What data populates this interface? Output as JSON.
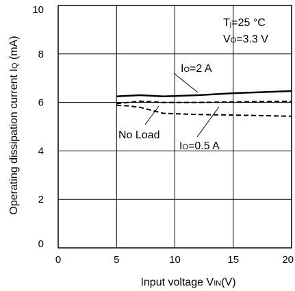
{
  "chart_data": {
    "type": "line",
    "xlabel": {
      "main": "Input voltage V",
      "sub": "IN",
      "tail": "(V)"
    },
    "ylabel": {
      "main": "Operating dissipation current I",
      "sub": "Q",
      "tail": " (mA)"
    },
    "xlim": [
      0,
      20
    ],
    "ylim": [
      0,
      10
    ],
    "xticks": [
      "0",
      "5",
      "10",
      "15",
      "20"
    ],
    "yticks": [
      "0",
      "2",
      "4",
      "6",
      "8",
      "10"
    ],
    "grid": true,
    "conditions": [
      {
        "main": "T",
        "sub": "j",
        "tail": "=25 °C"
      },
      {
        "main": "V",
        "sub": "O",
        "tail": "=3.3 V"
      }
    ],
    "series": [
      {
        "name": {
          "main": "I",
          "sub": "O",
          "tail": "=2 A"
        },
        "style": "solid",
        "x": [
          5,
          7,
          9,
          12,
          15,
          20
        ],
        "y": [
          6.25,
          6.3,
          6.25,
          6.3,
          6.38,
          6.47
        ]
      },
      {
        "name": "No Load",
        "style": "dashed",
        "x": [
          5,
          7,
          9,
          12,
          15,
          20
        ],
        "y": [
          5.95,
          6.05,
          6.0,
          6.0,
          6.02,
          6.05
        ]
      },
      {
        "name": {
          "main": "I",
          "sub": "O",
          "tail": "=0.5 A"
        },
        "style": "dashed",
        "x": [
          5,
          6,
          7,
          9,
          12,
          15,
          20
        ],
        "y": [
          5.88,
          5.86,
          5.8,
          5.55,
          5.5,
          5.48,
          5.43
        ]
      }
    ]
  }
}
